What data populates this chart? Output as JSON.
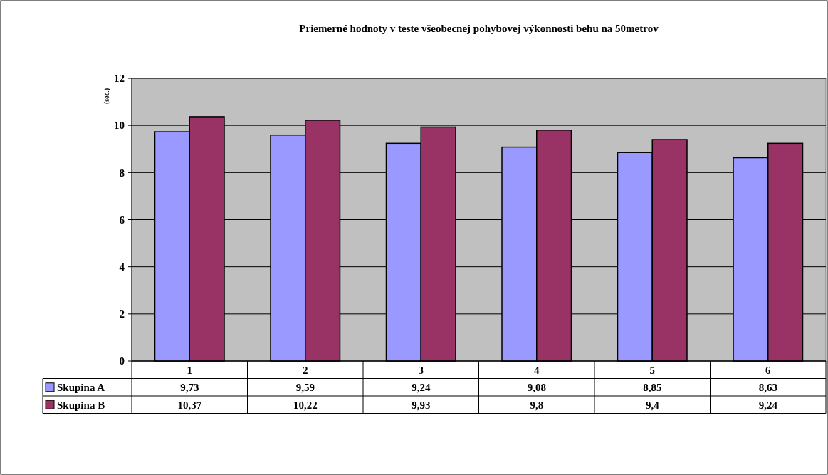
{
  "chart_data": {
    "type": "bar",
    "title": "Priemerné hodnoty v teste všeobecnej pohybovej výkonnosti behu na 50metrov",
    "ylabel": "(sec.)",
    "categories": [
      "1",
      "2",
      "3",
      "4",
      "5",
      "6"
    ],
    "series": [
      {
        "name": "Skupina A",
        "color": "#9999ff",
        "values": [
          9.73,
          9.59,
          9.24,
          9.08,
          8.85,
          8.63
        ],
        "value_labels": [
          "9,73",
          "9,59",
          "9,24",
          "9,08",
          "8,85",
          "8,63"
        ]
      },
      {
        "name": "Skupina B",
        "color": "#993366",
        "values": [
          10.37,
          10.22,
          9.93,
          9.8,
          9.4,
          9.24
        ],
        "value_labels": [
          "10,37",
          "10,22",
          "9,93",
          "9,8",
          "9,4",
          "9,24"
        ]
      }
    ],
    "ylim": [
      0,
      12
    ],
    "yticks": [
      0,
      2,
      4,
      6,
      8,
      10,
      12
    ],
    "grid": "y",
    "legend": "bottom left"
  }
}
